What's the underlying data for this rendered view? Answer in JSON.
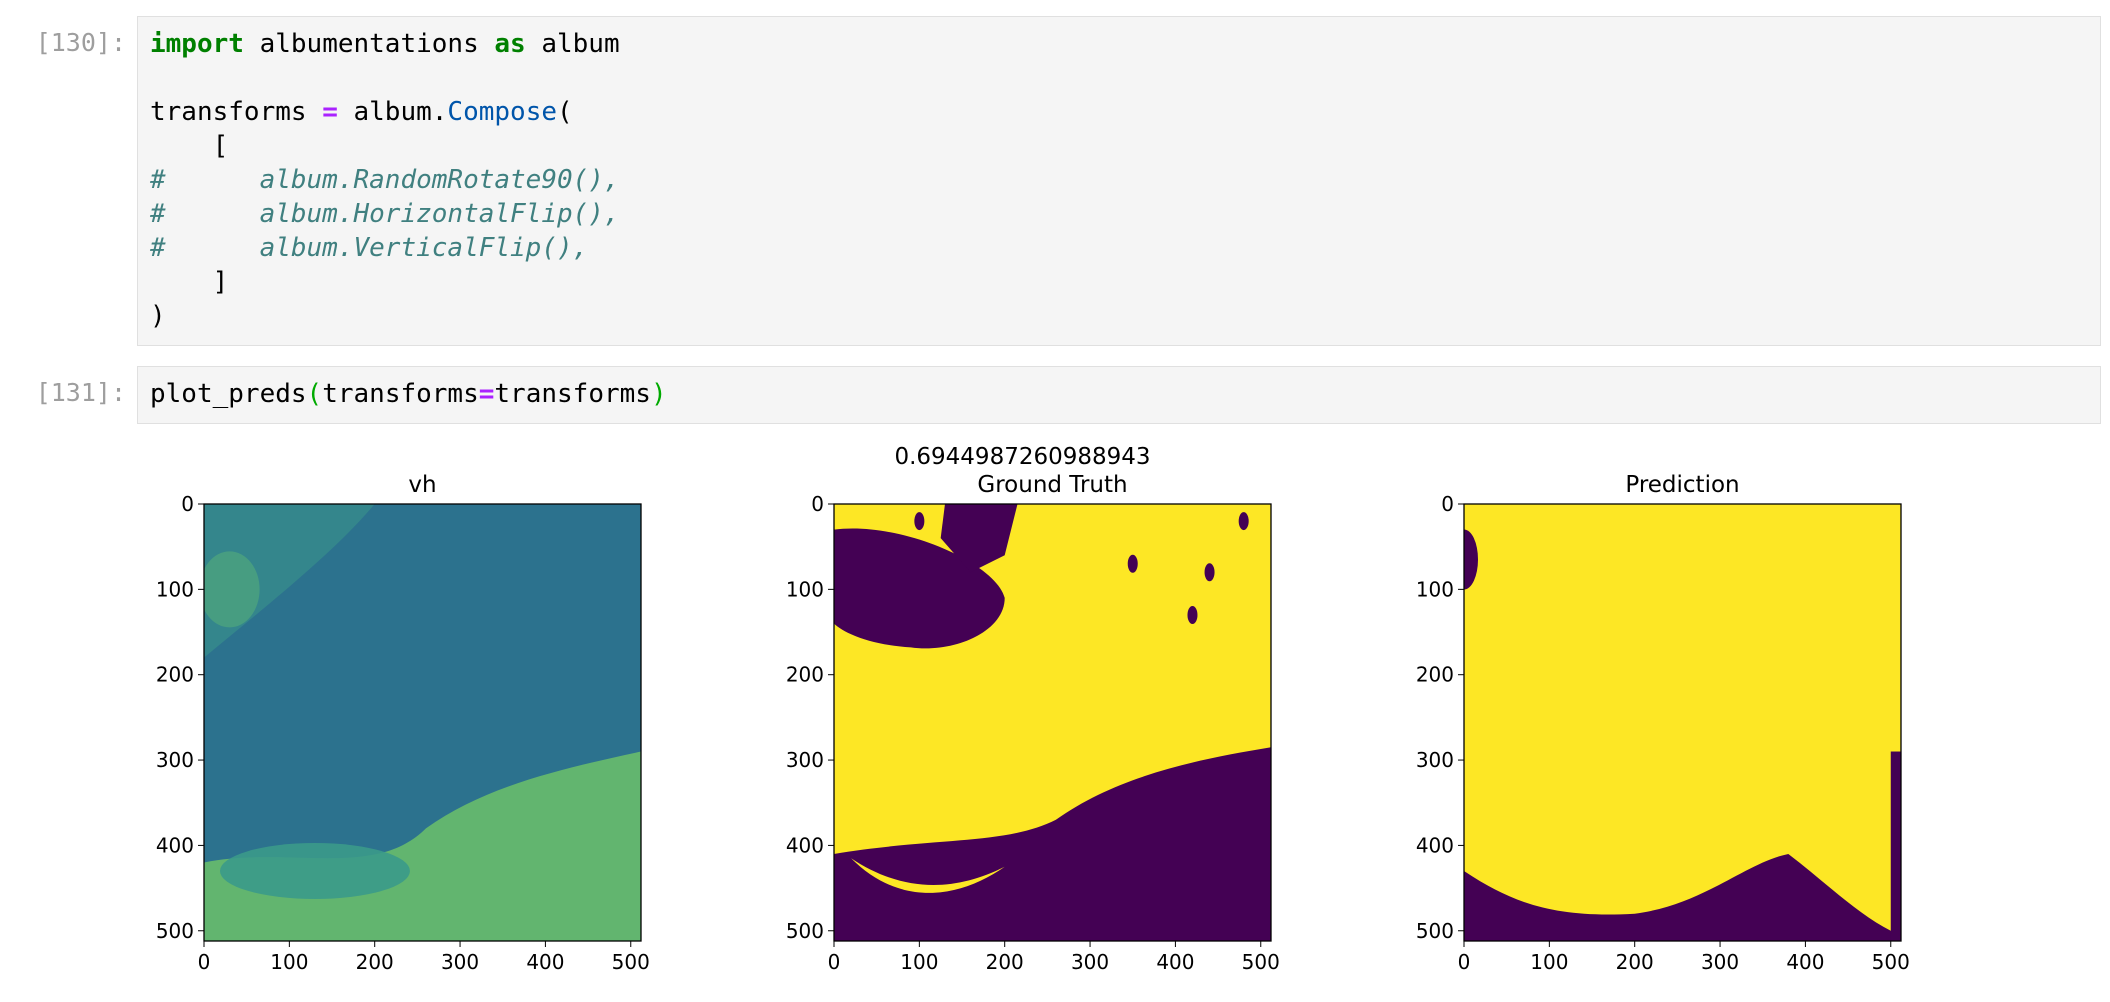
{
  "cells": [
    {
      "prompt": "[130]:",
      "lines": [
        {
          "segs": [
            {
              "t": "import",
              "c": "kw"
            },
            {
              "t": " albumentations ",
              "c": ""
            },
            {
              "t": "as",
              "c": "kw"
            },
            {
              "t": " album",
              "c": ""
            }
          ]
        },
        {
          "segs": []
        },
        {
          "segs": [
            {
              "t": "transforms ",
              "c": ""
            },
            {
              "t": "=",
              "c": "op"
            },
            {
              "t": " album.",
              "c": ""
            },
            {
              "t": "Compose",
              "c": "fn"
            },
            {
              "t": "(",
              "c": ""
            }
          ]
        },
        {
          "segs": [
            {
              "t": "    [",
              "c": ""
            }
          ]
        },
        {
          "segs": [
            {
              "t": "#      album.RandomRotate90(),",
              "c": "cm"
            }
          ]
        },
        {
          "segs": [
            {
              "t": "#      album.HorizontalFlip(),",
              "c": "cm"
            }
          ]
        },
        {
          "segs": [
            {
              "t": "#      album.VerticalFlip(),",
              "c": "cm"
            }
          ]
        },
        {
          "segs": [
            {
              "t": "    ]",
              "c": ""
            }
          ]
        },
        {
          "segs": [
            {
              "t": ")",
              "c": ""
            }
          ]
        }
      ]
    },
    {
      "prompt": "[131]:",
      "lines": [
        {
          "segs": [
            {
              "t": "plot_preds",
              "c": ""
            },
            {
              "t": "(",
              "c": "paren"
            },
            {
              "t": "transforms",
              "c": ""
            },
            {
              "t": "=",
              "c": "op"
            },
            {
              "t": "transforms",
              "c": ""
            },
            {
              "t": ")",
              "c": "paren"
            }
          ]
        }
      ]
    }
  ],
  "chart_data": [
    {
      "type": "image",
      "title": "vh",
      "xticks": [
        "0",
        "100",
        "200",
        "300",
        "400",
        "500"
      ],
      "yticks": [
        "0",
        "100",
        "200",
        "300",
        "400",
        "500"
      ],
      "xlim": [
        0,
        512
      ],
      "ylim": [
        512,
        0
      ],
      "colormap": "viridis",
      "colors": [
        "#2c728e",
        "#3b9a8a",
        "#6cc16a"
      ]
    },
    {
      "type": "image",
      "suptitle": "0.6944987260988943",
      "title": "Ground Truth",
      "xticks": [
        "0",
        "100",
        "200",
        "300",
        "400",
        "500"
      ],
      "yticks": [
        "0",
        "100",
        "200",
        "300",
        "400",
        "500"
      ],
      "xlim": [
        0,
        512
      ],
      "ylim": [
        512,
        0
      ],
      "colormap": "viridis",
      "colors": [
        "#440154",
        "#fde725"
      ]
    },
    {
      "type": "image",
      "title": "Prediction",
      "xticks": [
        "0",
        "100",
        "200",
        "300",
        "400",
        "500"
      ],
      "yticks": [
        "0",
        "100",
        "200",
        "300",
        "400",
        "500"
      ],
      "xlim": [
        0,
        512
      ],
      "ylim": [
        512,
        0
      ],
      "colormap": "viridis",
      "colors": [
        "#440154",
        "#fde725"
      ]
    }
  ]
}
